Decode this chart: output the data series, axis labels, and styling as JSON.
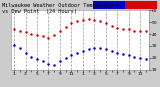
{
  "title_left": "Milwaukee Weather Outdoor Temperature",
  "title_right": "vs Dew Point  (24 Hours)",
  "bg_color": "#cccccc",
  "plot_bg_color": "#ffffff",
  "temp_color": "#dd0000",
  "dew_color": "#0000cc",
  "legend_temp_color": "#dd0000",
  "legend_dew_color": "#0000cc",
  "grid_color": "#999999",
  "x_labels": [
    "1",
    "2",
    "3",
    "4",
    "5",
    "6",
    "7",
    "8",
    "9",
    "10",
    "11",
    "12",
    "1",
    "2",
    "3",
    "4",
    "5",
    "6",
    "7",
    "8",
    "9",
    "10",
    "11",
    "12"
  ],
  "temp_x": [
    0,
    1,
    2,
    3,
    4,
    5,
    6,
    7,
    8,
    9,
    10,
    11,
    12,
    13,
    14,
    15,
    16,
    17,
    18,
    19,
    20,
    21,
    22,
    23
  ],
  "temp_y": [
    44,
    43,
    42,
    40,
    39,
    38,
    37,
    39,
    43,
    46,
    49,
    51,
    52,
    53,
    52,
    51,
    49,
    47,
    45,
    44,
    44,
    43,
    43,
    43
  ],
  "dew_x": [
    0,
    1,
    2,
    3,
    4,
    5,
    6,
    7,
    8,
    9,
    10,
    11,
    12,
    13,
    14,
    15,
    16,
    17,
    18,
    19,
    20,
    21,
    22,
    23
  ],
  "dew_y": [
    31,
    28,
    24,
    21,
    19,
    17,
    15,
    14,
    17,
    20,
    22,
    24,
    26,
    27,
    28,
    28,
    27,
    26,
    24,
    23,
    22,
    21,
    20,
    19
  ],
  "ylim": [
    10,
    60
  ],
  "yticks": [
    10,
    20,
    30,
    40,
    50,
    60
  ],
  "marker_size": 1.8,
  "title_fontsize": 3.8,
  "tick_fontsize": 3.2
}
